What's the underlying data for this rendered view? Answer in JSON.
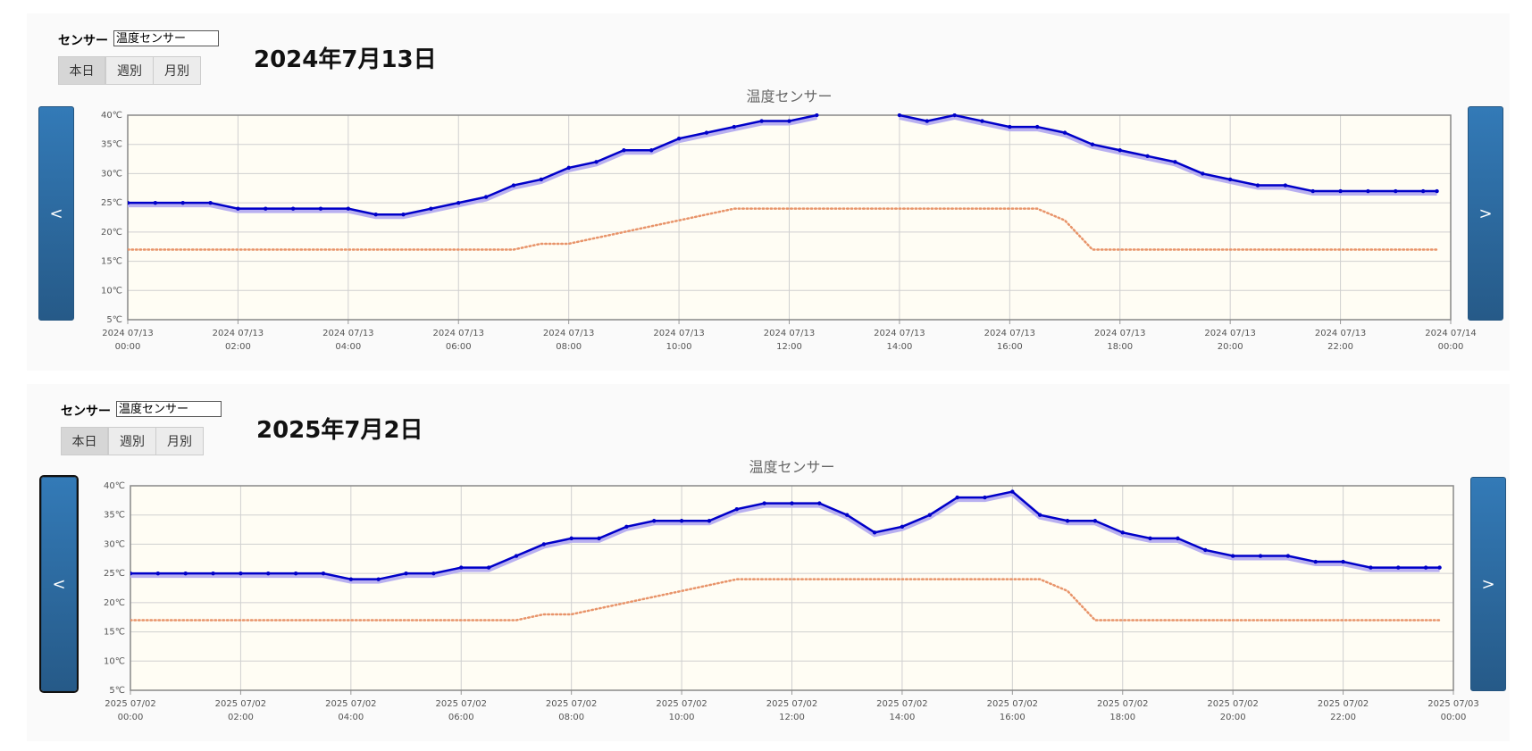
{
  "panels": [
    {
      "sensor_label": "センサー",
      "sensor_select": "温度センサー",
      "buttons": [
        "本日",
        "週別",
        "月別"
      ],
      "date": "2024年7月13日",
      "prev": "<",
      "next": ">"
    },
    {
      "sensor_label": "センサー",
      "sensor_select": "温度センサー",
      "buttons": [
        "本日",
        "週別",
        "月別"
      ],
      "date": "2025年7月2日",
      "prev": "<",
      "next": ">"
    }
  ],
  "chart_data": [
    {
      "type": "line",
      "title": "温度センサー",
      "grid": true,
      "x": [
        0,
        0.5,
        1,
        1.5,
        2,
        2.5,
        3,
        3.5,
        4,
        4.5,
        5,
        5.5,
        6,
        6.5,
        7,
        7.5,
        8,
        8.5,
        9,
        9.5,
        10,
        10.5,
        11,
        11.5,
        12,
        12.5,
        13,
        13.5,
        14,
        14.5,
        15,
        15.5,
        16,
        16.5,
        17,
        17.5,
        18,
        18.5,
        19,
        19.5,
        20,
        20.5,
        21,
        21.5,
        22,
        22.5,
        23,
        23.5,
        23.75
      ],
      "xlim": [
        0,
        24
      ],
      "xticks": [
        {
          "value": 0,
          "label": "2024 07/13\n00:00"
        },
        {
          "value": 2,
          "label": "2024 07/13\n02:00"
        },
        {
          "value": 4,
          "label": "2024 07/13\n04:00"
        },
        {
          "value": 6,
          "label": "2024 07/13\n06:00"
        },
        {
          "value": 8,
          "label": "2024 07/13\n08:00"
        },
        {
          "value": 10,
          "label": "2024 07/13\n10:00"
        },
        {
          "value": 12,
          "label": "2024 07/13\n12:00"
        },
        {
          "value": 14,
          "label": "2024 07/13\n14:00"
        },
        {
          "value": 16,
          "label": "2024 07/13\n16:00"
        },
        {
          "value": 18,
          "label": "2024 07/13\n18:00"
        },
        {
          "value": 20,
          "label": "2024 07/13\n20:00"
        },
        {
          "value": 22,
          "label": "2024 07/13\n22:00"
        },
        {
          "value": 24,
          "label": "2024 07/14\n00:00"
        }
      ],
      "ylim": [
        5,
        40
      ],
      "yticks": [
        {
          "value": 5,
          "label": "5℃"
        },
        {
          "value": 10,
          "label": "10℃"
        },
        {
          "value": 15,
          "label": "15℃"
        },
        {
          "value": 20,
          "label": "20℃"
        },
        {
          "value": 25,
          "label": "25℃"
        },
        {
          "value": 30,
          "label": "30℃"
        },
        {
          "value": 35,
          "label": "35℃"
        },
        {
          "value": 40,
          "label": "40℃"
        }
      ],
      "series": [
        {
          "color": "#0000c8",
          "style": "solid",
          "values": [
            25,
            25,
            25,
            25,
            24,
            24,
            24,
            24,
            24,
            23,
            23,
            24,
            25,
            26,
            28,
            29,
            31,
            32,
            34,
            34,
            36,
            37,
            38,
            39,
            39,
            40,
            null,
            null,
            40,
            39,
            40,
            39,
            38,
            38,
            37,
            35,
            34,
            33,
            32,
            30,
            29,
            28,
            28,
            27,
            27,
            27,
            27,
            27,
            27
          ]
        },
        {
          "color": "#e8946a",
          "style": "dotted",
          "values": [
            17,
            17,
            17,
            17,
            17,
            17,
            17,
            17,
            17,
            17,
            17,
            17,
            17,
            17,
            17,
            18,
            18,
            19,
            20,
            21,
            22,
            23,
            24,
            24,
            24,
            24,
            24,
            24,
            24,
            24,
            24,
            24,
            24,
            24,
            22,
            17,
            17,
            17,
            17,
            17,
            17,
            17,
            17,
            17,
            17,
            17,
            17,
            17,
            17
          ]
        }
      ]
    },
    {
      "type": "line",
      "title": "温度センサー",
      "grid": true,
      "x": [
        0,
        0.5,
        1,
        1.5,
        2,
        2.5,
        3,
        3.5,
        4,
        4.5,
        5,
        5.5,
        6,
        6.5,
        7,
        7.5,
        8,
        8.5,
        9,
        9.5,
        10,
        10.5,
        11,
        11.5,
        12,
        12.5,
        13,
        13.5,
        14,
        14.5,
        15,
        15.5,
        16,
        16.5,
        17,
        17.5,
        18,
        18.5,
        19,
        19.5,
        20,
        20.5,
        21,
        21.5,
        22,
        22.5,
        23,
        23.5,
        23.75
      ],
      "xlim": [
        0,
        24
      ],
      "xticks": [
        {
          "value": 0,
          "label": "2025 07/02\n00:00"
        },
        {
          "value": 2,
          "label": "2025 07/02\n02:00"
        },
        {
          "value": 4,
          "label": "2025 07/02\n04:00"
        },
        {
          "value": 6,
          "label": "2025 07/02\n06:00"
        },
        {
          "value": 8,
          "label": "2025 07/02\n08:00"
        },
        {
          "value": 10,
          "label": "2025 07/02\n10:00"
        },
        {
          "value": 12,
          "label": "2025 07/02\n12:00"
        },
        {
          "value": 14,
          "label": "2025 07/02\n14:00"
        },
        {
          "value": 16,
          "label": "2025 07/02\n16:00"
        },
        {
          "value": 18,
          "label": "2025 07/02\n18:00"
        },
        {
          "value": 20,
          "label": "2025 07/02\n20:00"
        },
        {
          "value": 22,
          "label": "2025 07/02\n22:00"
        },
        {
          "value": 24,
          "label": "2025 07/03\n00:00"
        }
      ],
      "ylim": [
        5,
        40
      ],
      "yticks": [
        {
          "value": 5,
          "label": "5℃"
        },
        {
          "value": 10,
          "label": "10℃"
        },
        {
          "value": 15,
          "label": "15℃"
        },
        {
          "value": 20,
          "label": "20℃"
        },
        {
          "value": 25,
          "label": "25℃"
        },
        {
          "value": 30,
          "label": "30℃"
        },
        {
          "value": 35,
          "label": "35℃"
        },
        {
          "value": 40,
          "label": "40℃"
        }
      ],
      "series": [
        {
          "color": "#0000c8",
          "style": "solid",
          "values": [
            25,
            25,
            25,
            25,
            25,
            25,
            25,
            25,
            24,
            24,
            25,
            25,
            26,
            26,
            28,
            30,
            31,
            31,
            33,
            34,
            34,
            34,
            36,
            37,
            37,
            37,
            35,
            32,
            33,
            35,
            38,
            38,
            39,
            35,
            34,
            34,
            32,
            31,
            31,
            29,
            28,
            28,
            28,
            27,
            27,
            26,
            26,
            26,
            26
          ]
        },
        {
          "color": "#e8946a",
          "style": "dotted",
          "values": [
            17,
            17,
            17,
            17,
            17,
            17,
            17,
            17,
            17,
            17,
            17,
            17,
            17,
            17,
            17,
            18,
            18,
            19,
            20,
            21,
            22,
            23,
            24,
            24,
            24,
            24,
            24,
            24,
            24,
            24,
            24,
            24,
            24,
            24,
            22,
            17,
            17,
            17,
            17,
            17,
            17,
            17,
            17,
            17,
            17,
            17,
            17,
            17,
            17
          ]
        }
      ]
    }
  ]
}
